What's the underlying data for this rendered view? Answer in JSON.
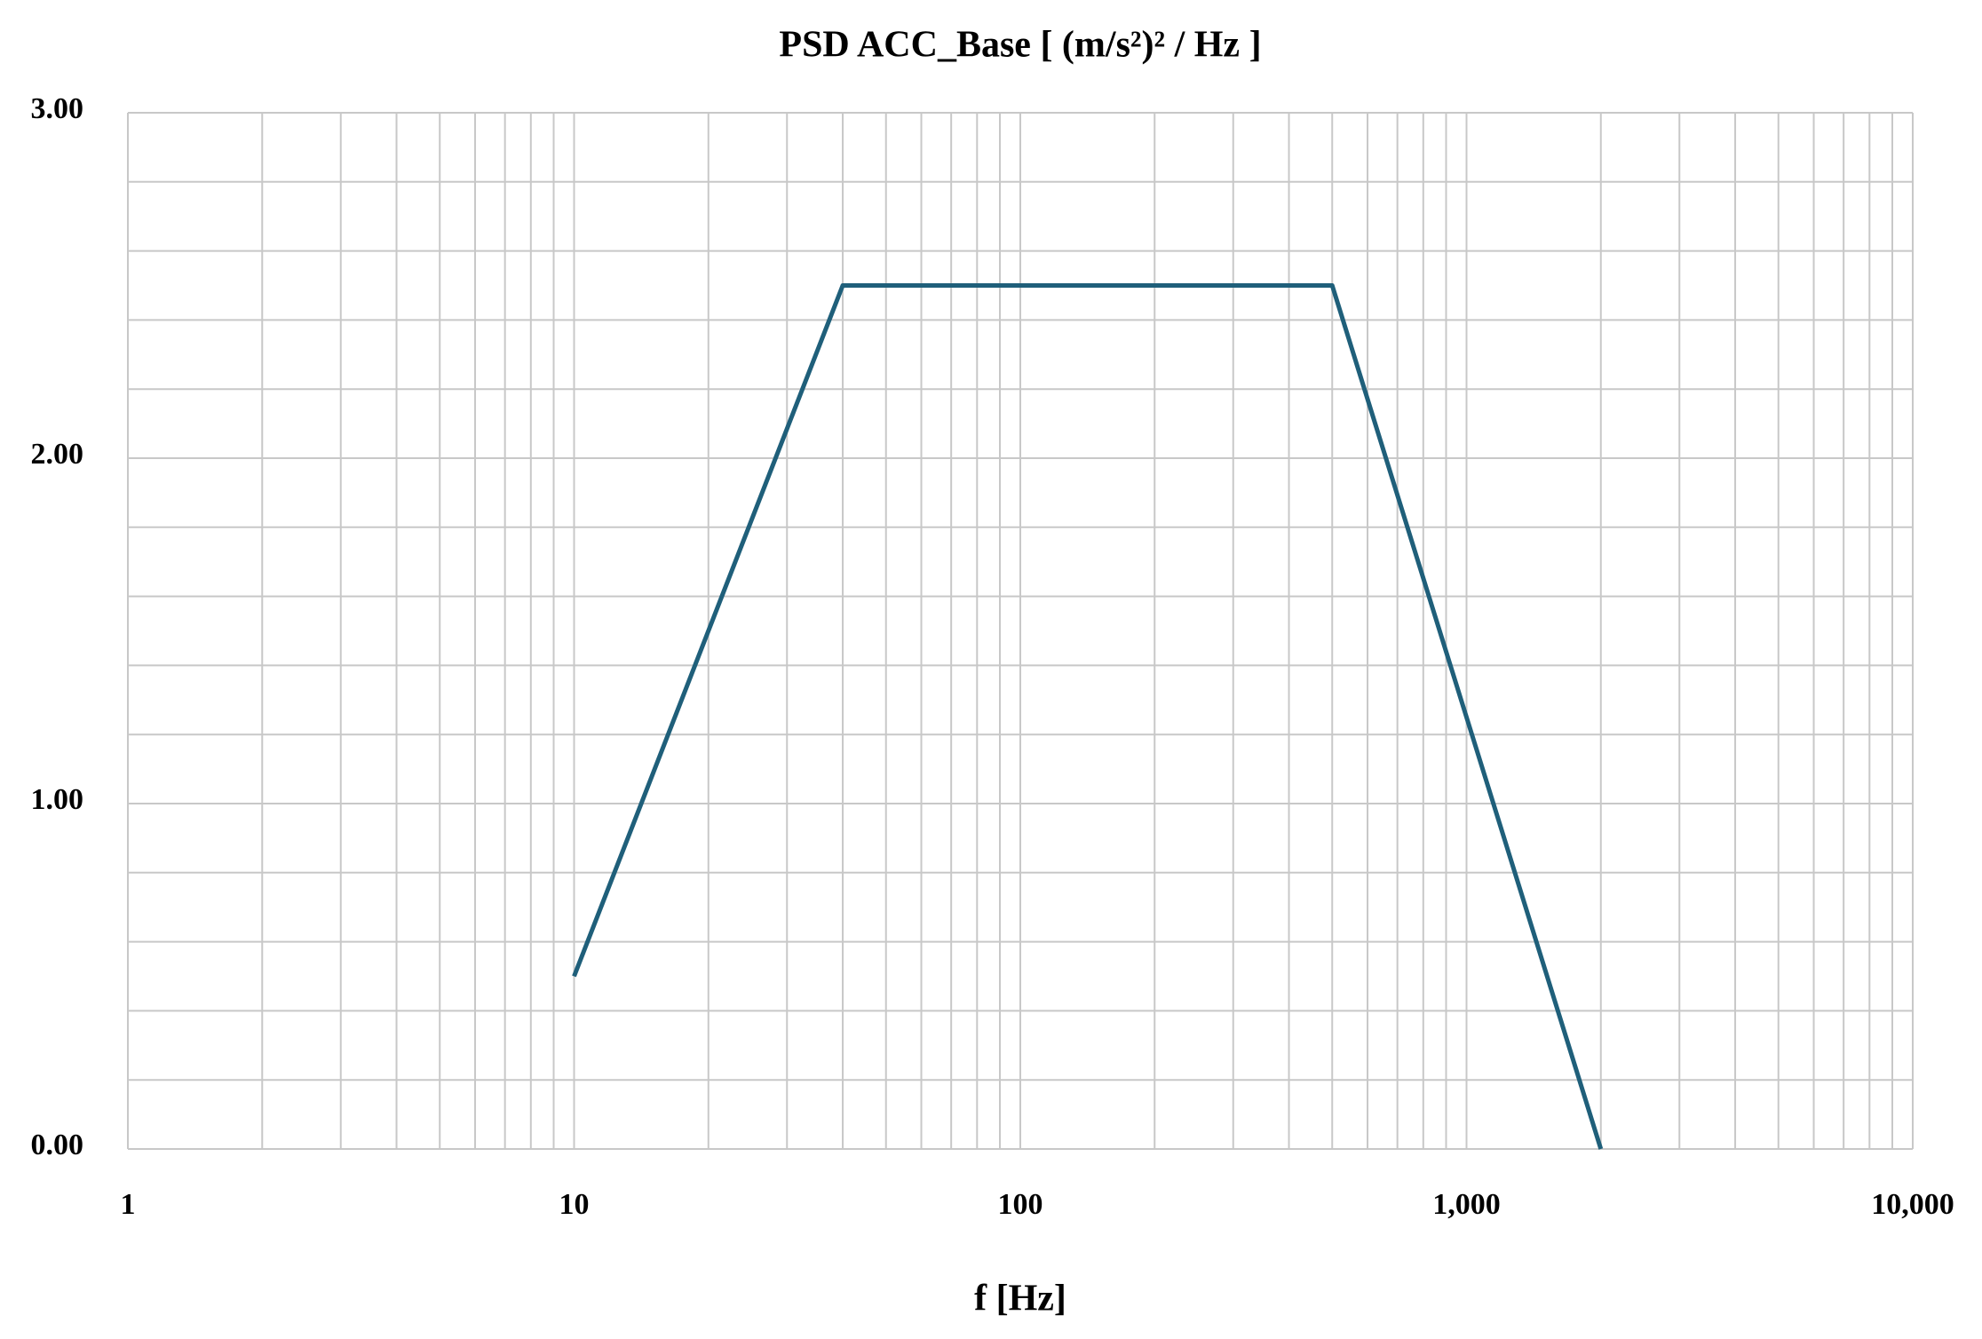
{
  "chart_data": {
    "type": "line",
    "title": "PSD ACC_Base [ (m/s²)² / Hz ]",
    "x_label": "f  [Hz]",
    "xscale": "log",
    "xlim": [
      1,
      10000
    ],
    "xticks": [
      1,
      10,
      100,
      {
        "value": 1000,
        "label": "1,000"
      },
      {
        "value": 10000,
        "label": "10,000"
      }
    ],
    "ylim": [
      0,
      3
    ],
    "yticks": [
      {
        "value": 0,
        "label": "0.00"
      },
      {
        "value": 1,
        "label": "1.00"
      },
      {
        "value": 2,
        "label": "2.00"
      },
      {
        "value": 3,
        "label": "3.00"
      }
    ],
    "grid": true,
    "minor_grid": true,
    "x": [
      10,
      40,
      500,
      2000
    ],
    "series": [
      {
        "color": "#1f5f7a",
        "values": [
          0.5,
          2.5,
          2.5,
          0
        ]
      }
    ]
  }
}
